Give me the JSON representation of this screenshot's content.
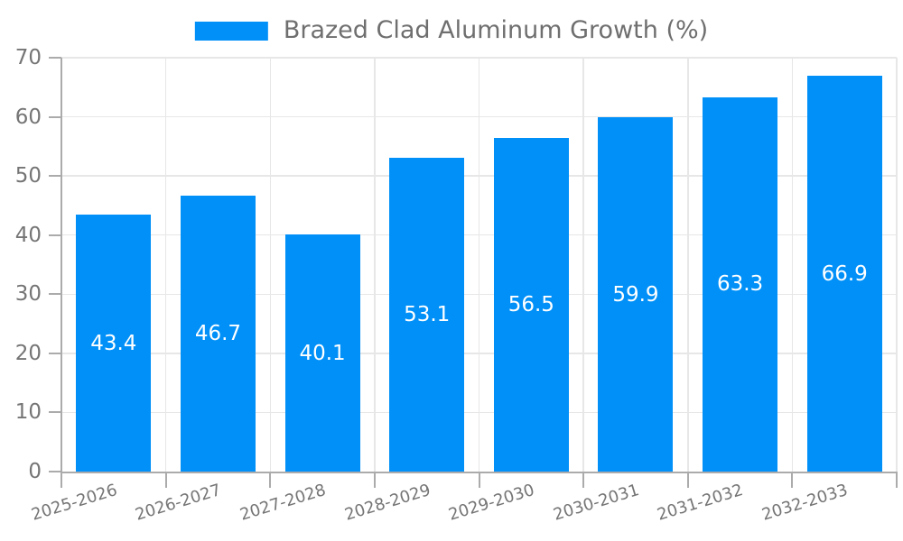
{
  "chart_data": {
    "type": "bar",
    "title": "",
    "legend_label": "Brazed Clad Aluminum Growth (%)",
    "legend_position": "top-center",
    "categories": [
      "2025-2026",
      "2026-2027",
      "2027-2028",
      "2028-2029",
      "2029-2030",
      "2030-2031",
      "2031-2032",
      "2032-2033"
    ],
    "values": [
      43.4,
      46.7,
      40.1,
      53.1,
      56.5,
      59.9,
      63.3,
      66.9
    ],
    "value_labels": [
      "43.4",
      "46.7",
      "40.1",
      "53.1",
      "56.5",
      "59.9",
      "63.3",
      "66.9"
    ],
    "value_label_position": "inside-center",
    "xlabel": "",
    "ylabel": "",
    "ylim": [
      0,
      70
    ],
    "ytick_step": 10,
    "ytick_labels": [
      "0",
      "10",
      "20",
      "30",
      "40",
      "50",
      "60",
      "70"
    ],
    "grid": true,
    "x_label_rotation_deg": -17,
    "colors": {
      "bar": "#0090F8",
      "grid": "#E7E7E7",
      "axis": "#ABABAB",
      "tick_label": "#757575",
      "legend_text": "#6F6F6F",
      "value_label": "#FFFFFF",
      "background": "#FFFFFF"
    }
  }
}
